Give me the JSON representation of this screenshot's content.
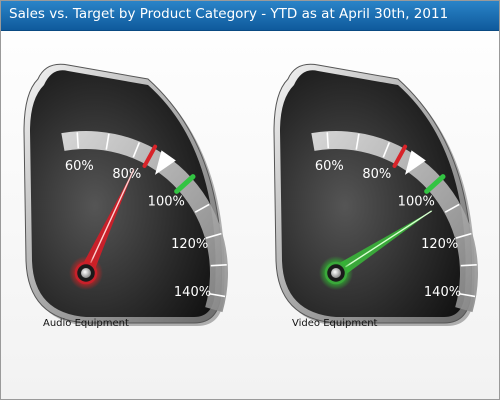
{
  "title": "Sales vs. Target by Product Category - YTD as at April 30th, 2011",
  "colors": {
    "title_bar": "#1872b8",
    "target_marker": "#33c443",
    "warning_marker": "#d8242a",
    "needle_audio": "#c8202a",
    "needle_video": "#3aa83a"
  },
  "chart_data": [
    {
      "type": "gauge",
      "category": "Audio Equipment",
      "tick_labels": [
        "60%",
        "80%",
        "100%",
        "120%",
        "140%"
      ],
      "scale_min": 55,
      "scale_max": 145,
      "value": 82,
      "target": 100,
      "warning": 85,
      "comparison_arrow": 90
    },
    {
      "type": "gauge",
      "category": "Video Equipment",
      "tick_labels": [
        "60%",
        "80%",
        "100%",
        "120%",
        "140%"
      ],
      "scale_min": 55,
      "scale_max": 145,
      "value": 107,
      "target": 100,
      "warning": 85,
      "comparison_arrow": 90
    }
  ]
}
